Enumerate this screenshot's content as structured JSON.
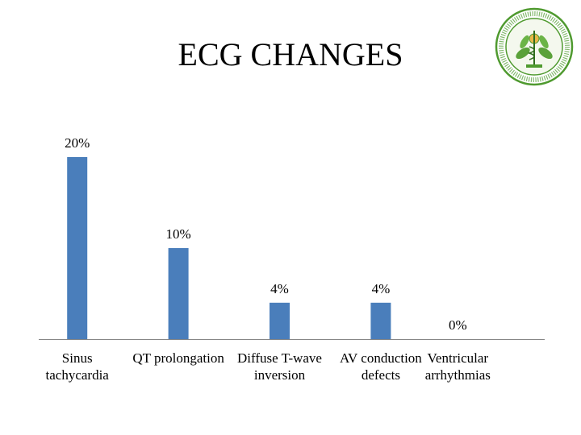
{
  "slide": {
    "title": "ECG CHANGES"
  },
  "logo": {
    "kind": "institutional-seal",
    "ring_text": "POSTGRADUATE INSTITUTE OF MEDICAL EDUCATION AND RESEARCH CHANDIGARH",
    "colors": {
      "ring": "#4f9a2f",
      "fill": "#f4f8ee",
      "accent": "#e8b84a"
    }
  },
  "chart_data": {
    "type": "bar",
    "categories": [
      "Sinus\ntachycardia",
      "QT prolongation",
      "Diffuse T-wave\ninversion",
      "AV conduction\ndefects",
      "Ventricular\narrhythmias"
    ],
    "values": [
      20,
      10,
      4,
      4,
      0
    ],
    "data_labels": [
      "20%",
      "10%",
      "4%",
      "4%",
      "0%"
    ],
    "ylim": [
      0,
      20
    ],
    "grid": false,
    "legend": "none",
    "bar_color": "#4a7ebb",
    "axis_color": "#868686"
  }
}
